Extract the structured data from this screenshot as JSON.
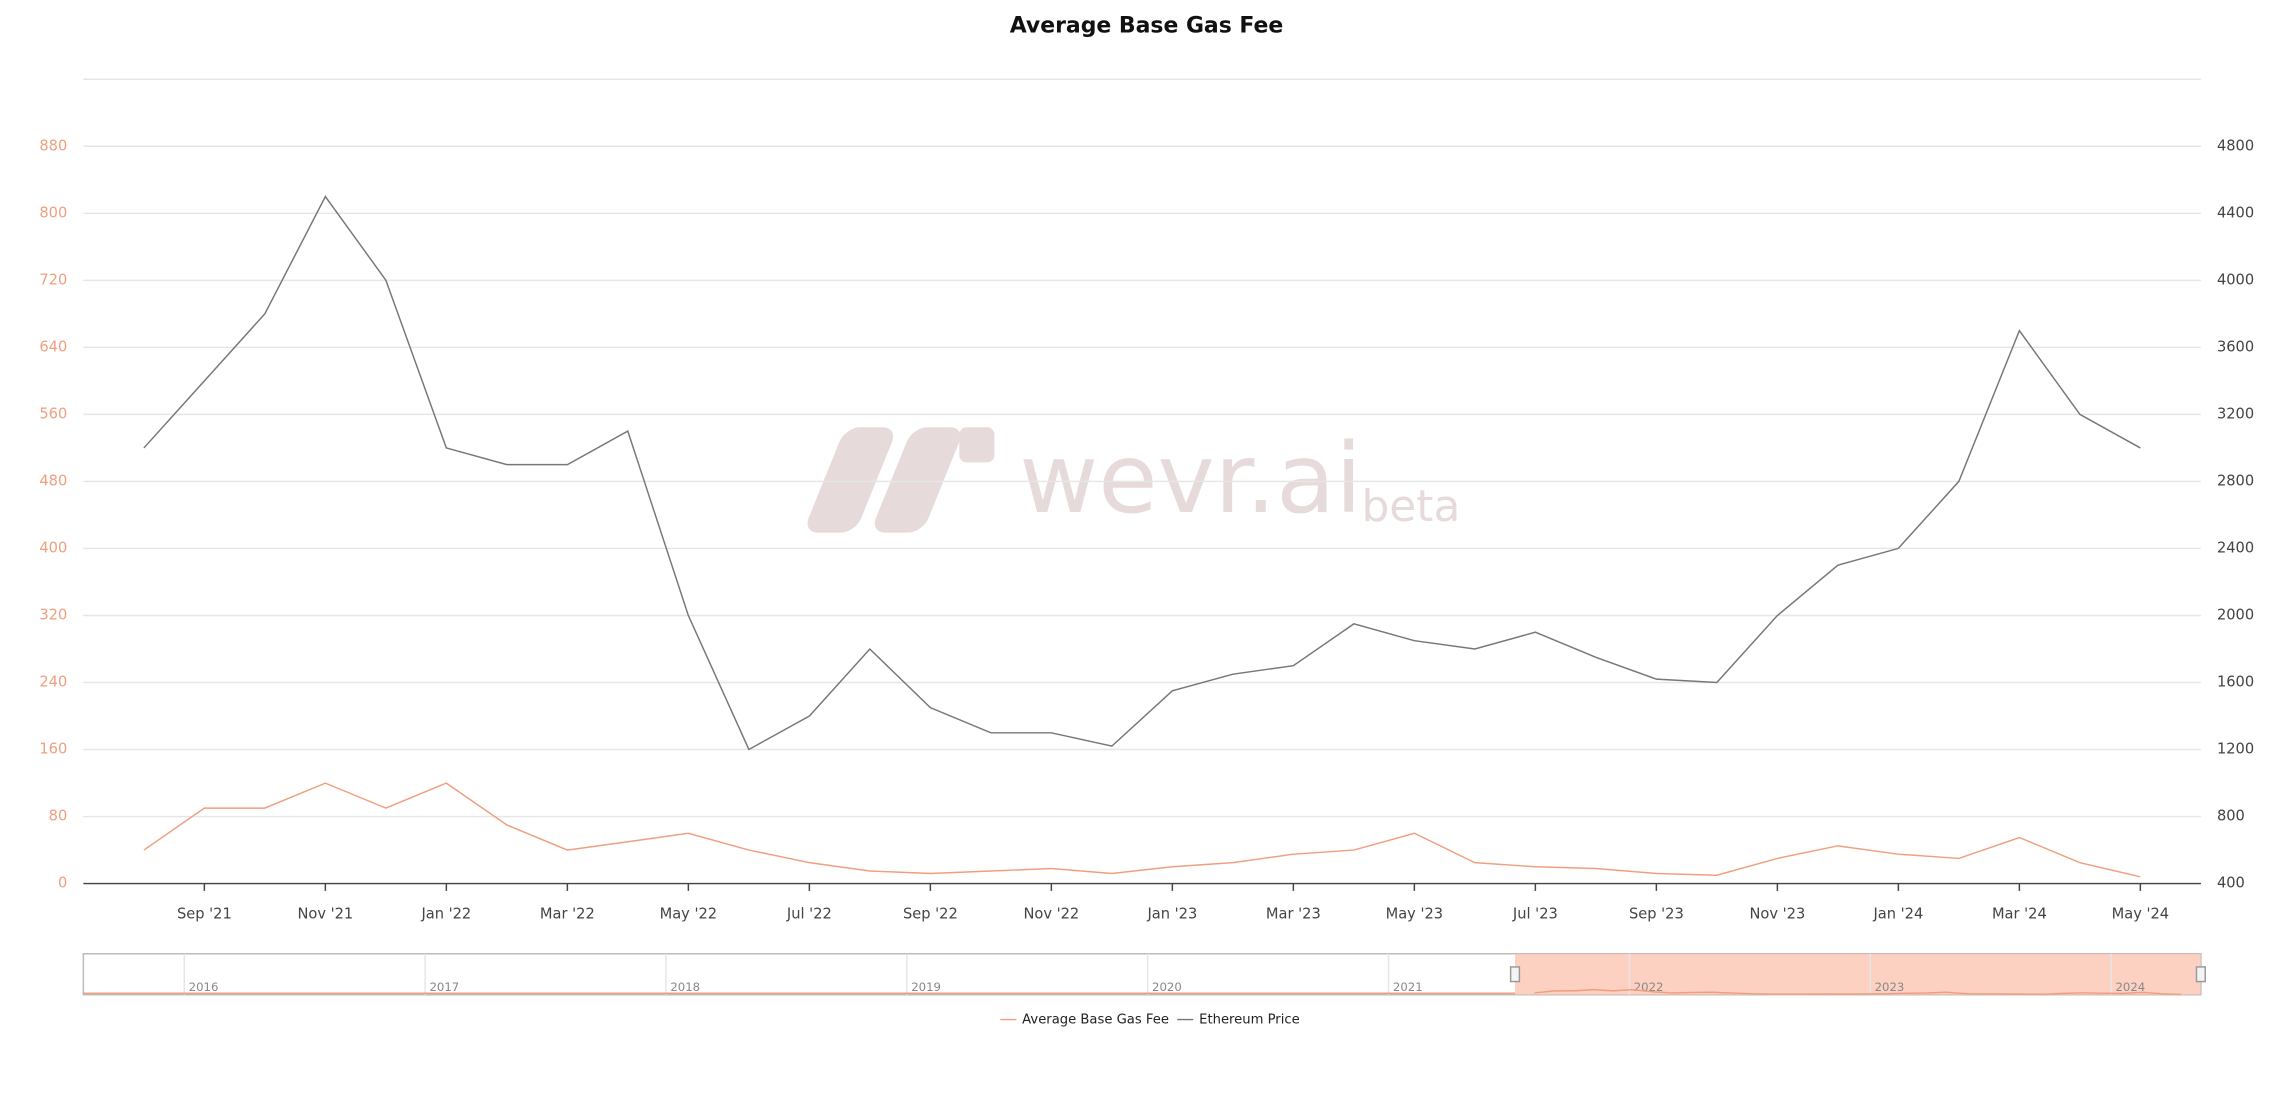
{
  "chart_data": {
    "type": "line",
    "title": "Average Base Gas Fee",
    "x": [
      "2021-08",
      "2021-09",
      "2021-10",
      "2021-11",
      "2021-12",
      "2022-01",
      "2022-02",
      "2022-03",
      "2022-04",
      "2022-05",
      "2022-06",
      "2022-07",
      "2022-08",
      "2022-09",
      "2022-10",
      "2022-11",
      "2022-12",
      "2023-01",
      "2023-02",
      "2023-03",
      "2023-04",
      "2023-05",
      "2023-06",
      "2023-07",
      "2023-08",
      "2023-09",
      "2023-10",
      "2023-11",
      "2023-12",
      "2024-01",
      "2024-02",
      "2024-03",
      "2024-04",
      "2024-05"
    ],
    "xlim": [
      "2021-07",
      "2024-06"
    ],
    "xticks": [
      {
        "value": "2021-09",
        "label": "Sep '21"
      },
      {
        "value": "2021-11",
        "label": "Nov '21"
      },
      {
        "value": "2022-01",
        "label": "Jan '22"
      },
      {
        "value": "2022-03",
        "label": "Mar '22"
      },
      {
        "value": "2022-05",
        "label": "May '22"
      },
      {
        "value": "2022-07",
        "label": "Jul '22"
      },
      {
        "value": "2022-09",
        "label": "Sep '22"
      },
      {
        "value": "2022-11",
        "label": "Nov '22"
      },
      {
        "value": "2023-01",
        "label": "Jan '23"
      },
      {
        "value": "2023-03",
        "label": "Mar '23"
      },
      {
        "value": "2023-05",
        "label": "May '23"
      },
      {
        "value": "2023-07",
        "label": "Jul '23"
      },
      {
        "value": "2023-09",
        "label": "Sep '23"
      },
      {
        "value": "2023-11",
        "label": "Nov '23"
      },
      {
        "value": "2024-01",
        "label": "Jan '24"
      },
      {
        "value": "2024-03",
        "label": "Mar '24"
      },
      {
        "value": "2024-05",
        "label": "May '24"
      }
    ],
    "ylim": [
      0,
      960
    ],
    "yticks": [
      0,
      80,
      160,
      240,
      320,
      400,
      480,
      560,
      640,
      720,
      800,
      880
    ],
    "y2lim": [
      400,
      5200
    ],
    "y2ticks": [
      400,
      800,
      1200,
      1600,
      2000,
      2400,
      2800,
      3200,
      3600,
      4000,
      4400,
      4800
    ],
    "grid": true,
    "legend": "bottom",
    "series": [
      {
        "name": "Average Base Gas Fee",
        "color": "#ef9f80",
        "values": [
          40,
          90,
          90,
          120,
          90,
          120,
          70,
          40,
          50,
          60,
          40,
          25,
          15,
          12,
          15,
          18,
          12,
          20,
          25,
          35,
          40,
          60,
          25,
          20,
          18,
          12,
          10,
          30,
          45,
          35,
          30,
          55,
          25,
          8
        ]
      },
      {
        "name": "Ethereum Price",
        "color": "#777777",
        "axis": "y2",
        "values": [
          3000,
          3400,
          3800,
          4500,
          4000,
          3000,
          2900,
          2900,
          3100,
          2000,
          1200,
          1400,
          1800,
          1450,
          1300,
          1300,
          1220,
          1550,
          1650,
          1700,
          1950,
          1850,
          1800,
          1900,
          1750,
          1620,
          1600,
          2000,
          2300,
          2400,
          2800,
          3700,
          3200,
          3000
        ]
      }
    ]
  },
  "navigator": {
    "labels": [
      "2016",
      "2017",
      "2018",
      "2019",
      "2020",
      "2021",
      "2022",
      "2023",
      "2024"
    ]
  },
  "watermark": {
    "text": "wevr.ai",
    "suffix": "beta"
  }
}
